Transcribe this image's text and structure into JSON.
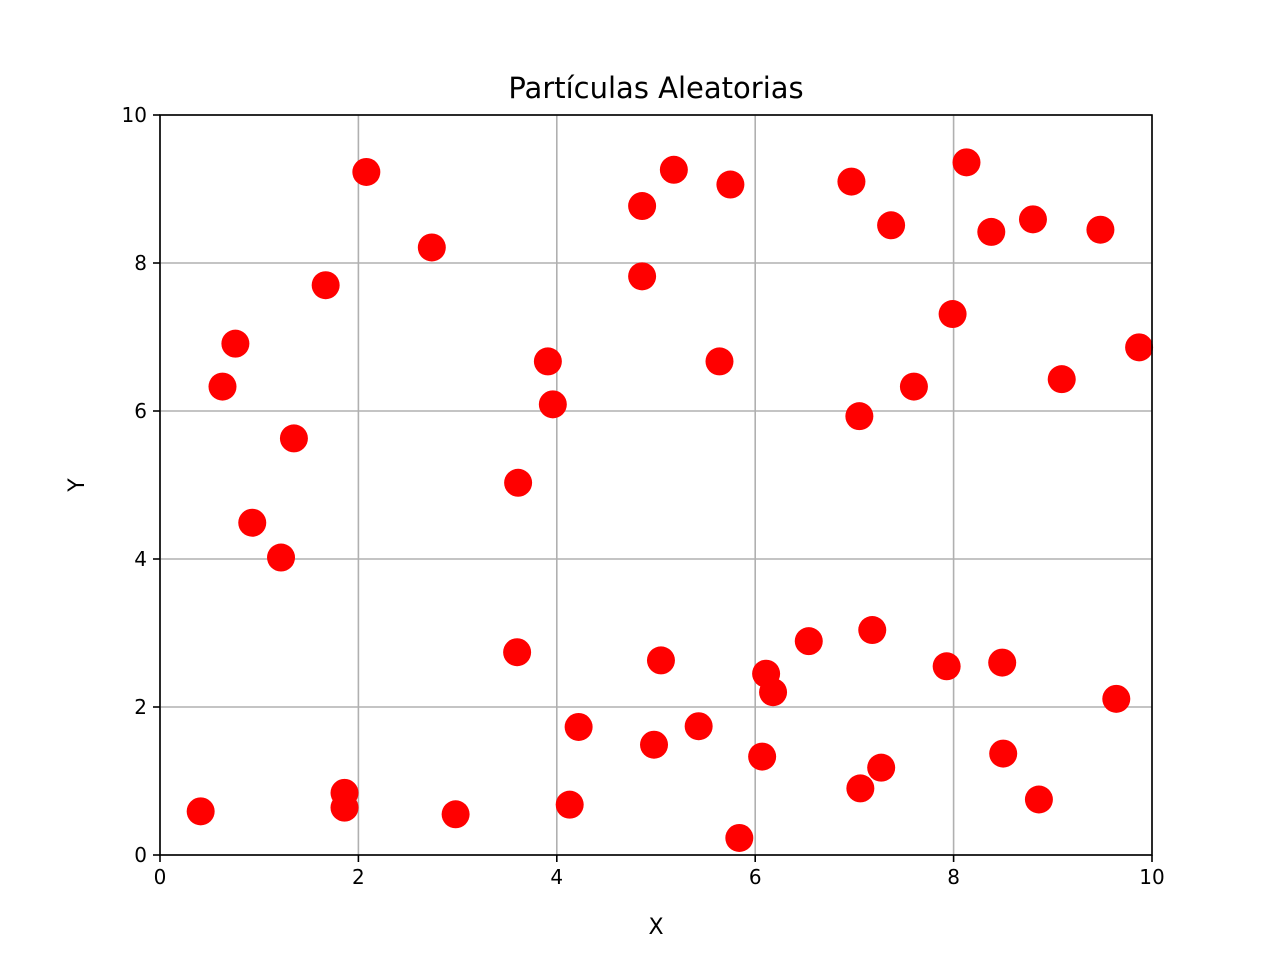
{
  "chart_data": {
    "type": "scatter",
    "title": "Partículas Aleatorias",
    "xlabel": "X",
    "ylabel": "Y",
    "xlim": [
      0,
      10
    ],
    "ylim": [
      0,
      10
    ],
    "xticks": [
      "0",
      "2",
      "4",
      "6",
      "8",
      "10"
    ],
    "yticks": [
      "0",
      "2",
      "4",
      "6",
      "8",
      "10"
    ],
    "grid": true,
    "marker_color": "#ff0000",
    "grid_color": "#b0b0b0",
    "points": [
      {
        "x": 0.41,
        "y": 0.59
      },
      {
        "x": 0.63,
        "y": 6.33
      },
      {
        "x": 0.76,
        "y": 6.91
      },
      {
        "x": 0.93,
        "y": 4.49
      },
      {
        "x": 1.22,
        "y": 4.02
      },
      {
        "x": 1.35,
        "y": 5.63
      },
      {
        "x": 1.67,
        "y": 7.7
      },
      {
        "x": 1.86,
        "y": 0.84
      },
      {
        "x": 1.86,
        "y": 0.64
      },
      {
        "x": 2.08,
        "y": 9.23
      },
      {
        "x": 2.74,
        "y": 8.21
      },
      {
        "x": 2.98,
        "y": 0.55
      },
      {
        "x": 3.61,
        "y": 5.03
      },
      {
        "x": 3.6,
        "y": 2.74
      },
      {
        "x": 3.91,
        "y": 6.67
      },
      {
        "x": 3.96,
        "y": 6.09
      },
      {
        "x": 4.22,
        "y": 1.73
      },
      {
        "x": 4.13,
        "y": 0.68
      },
      {
        "x": 4.86,
        "y": 8.77
      },
      {
        "x": 4.86,
        "y": 7.82
      },
      {
        "x": 4.98,
        "y": 1.49
      },
      {
        "x": 5.05,
        "y": 2.63
      },
      {
        "x": 5.18,
        "y": 9.26
      },
      {
        "x": 5.43,
        "y": 1.74
      },
      {
        "x": 5.64,
        "y": 6.67
      },
      {
        "x": 5.75,
        "y": 9.06
      },
      {
        "x": 5.84,
        "y": 0.23
      },
      {
        "x": 6.07,
        "y": 1.33
      },
      {
        "x": 6.11,
        "y": 2.45
      },
      {
        "x": 6.18,
        "y": 2.2
      },
      {
        "x": 6.54,
        "y": 2.89
      },
      {
        "x": 6.97,
        "y": 9.1
      },
      {
        "x": 7.05,
        "y": 5.93
      },
      {
        "x": 7.06,
        "y": 0.9
      },
      {
        "x": 7.18,
        "y": 3.04
      },
      {
        "x": 7.27,
        "y": 1.18
      },
      {
        "x": 7.37,
        "y": 8.51
      },
      {
        "x": 7.6,
        "y": 6.33
      },
      {
        "x": 7.93,
        "y": 2.55
      },
      {
        "x": 7.99,
        "y": 7.31
      },
      {
        "x": 8.13,
        "y": 9.36
      },
      {
        "x": 8.38,
        "y": 8.42
      },
      {
        "x": 8.49,
        "y": 2.6
      },
      {
        "x": 8.5,
        "y": 1.37
      },
      {
        "x": 8.8,
        "y": 8.59
      },
      {
        "x": 8.86,
        "y": 0.75
      },
      {
        "x": 9.09,
        "y": 6.43
      },
      {
        "x": 9.48,
        "y": 8.45
      },
      {
        "x": 9.64,
        "y": 2.11
      },
      {
        "x": 9.87,
        "y": 6.86
      }
    ]
  }
}
